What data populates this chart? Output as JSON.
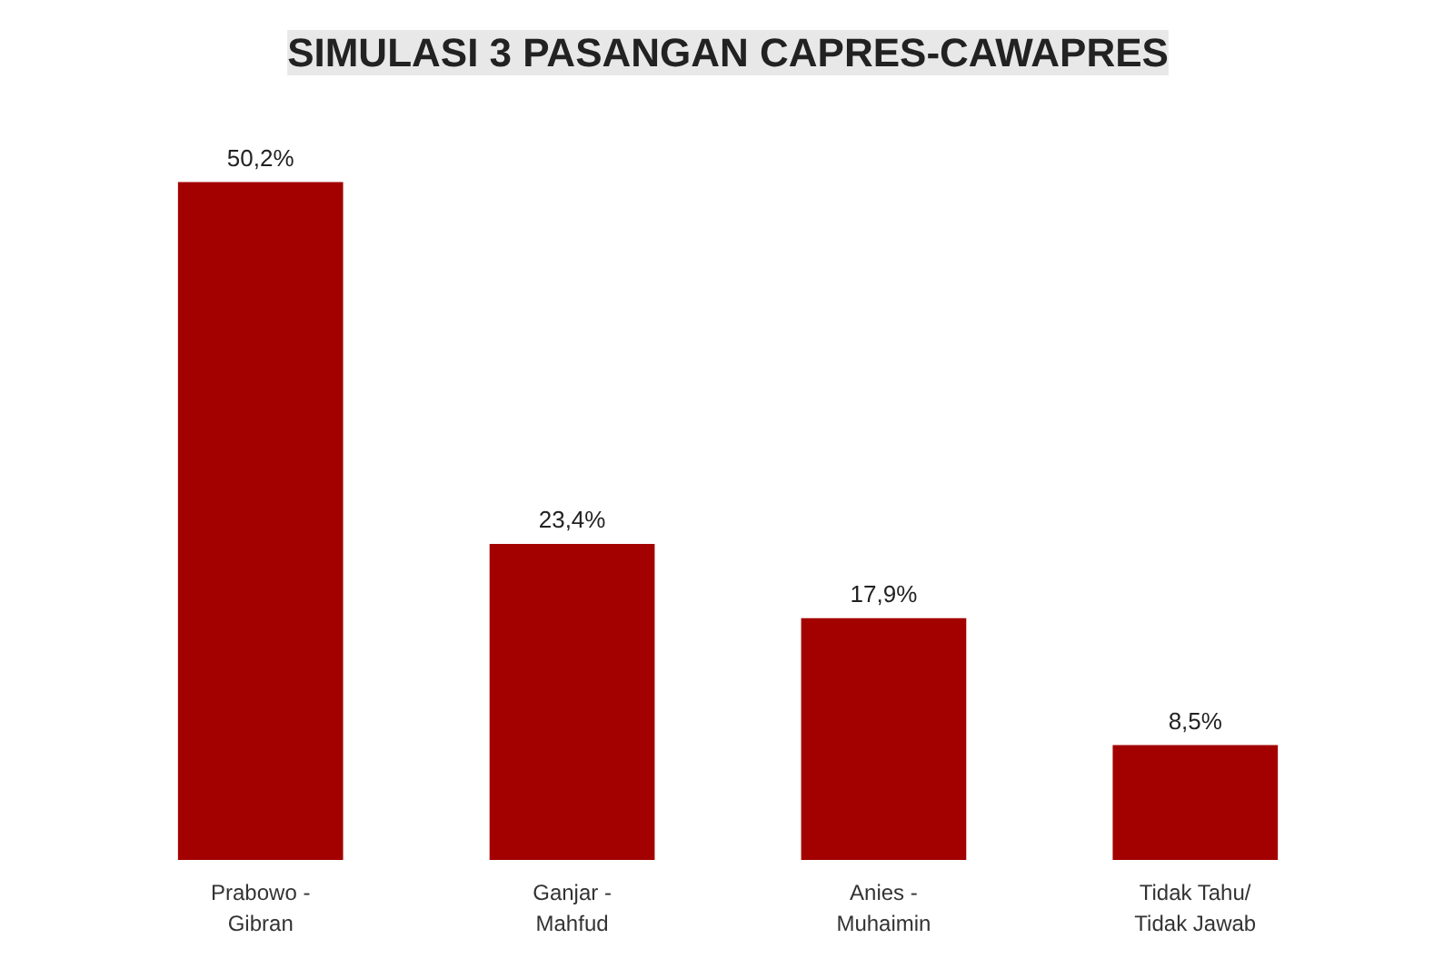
{
  "chart_data": {
    "type": "bar",
    "title": "SIMULASI 3 PASANGAN CAPRES-CAWAPRES",
    "categories": [
      "Prabowo -\nGibran",
      "Ganjar -\nMahfud",
      "Anies -\nMuhaimin",
      "Tidak Tahu/\nTidak Jawab"
    ],
    "values": [
      50.2,
      23.4,
      17.9,
      8.5
    ],
    "value_labels": [
      "50,2%",
      "23,4%",
      "17,9%",
      "8,5%"
    ],
    "color": "#a30000",
    "grid": false
  }
}
